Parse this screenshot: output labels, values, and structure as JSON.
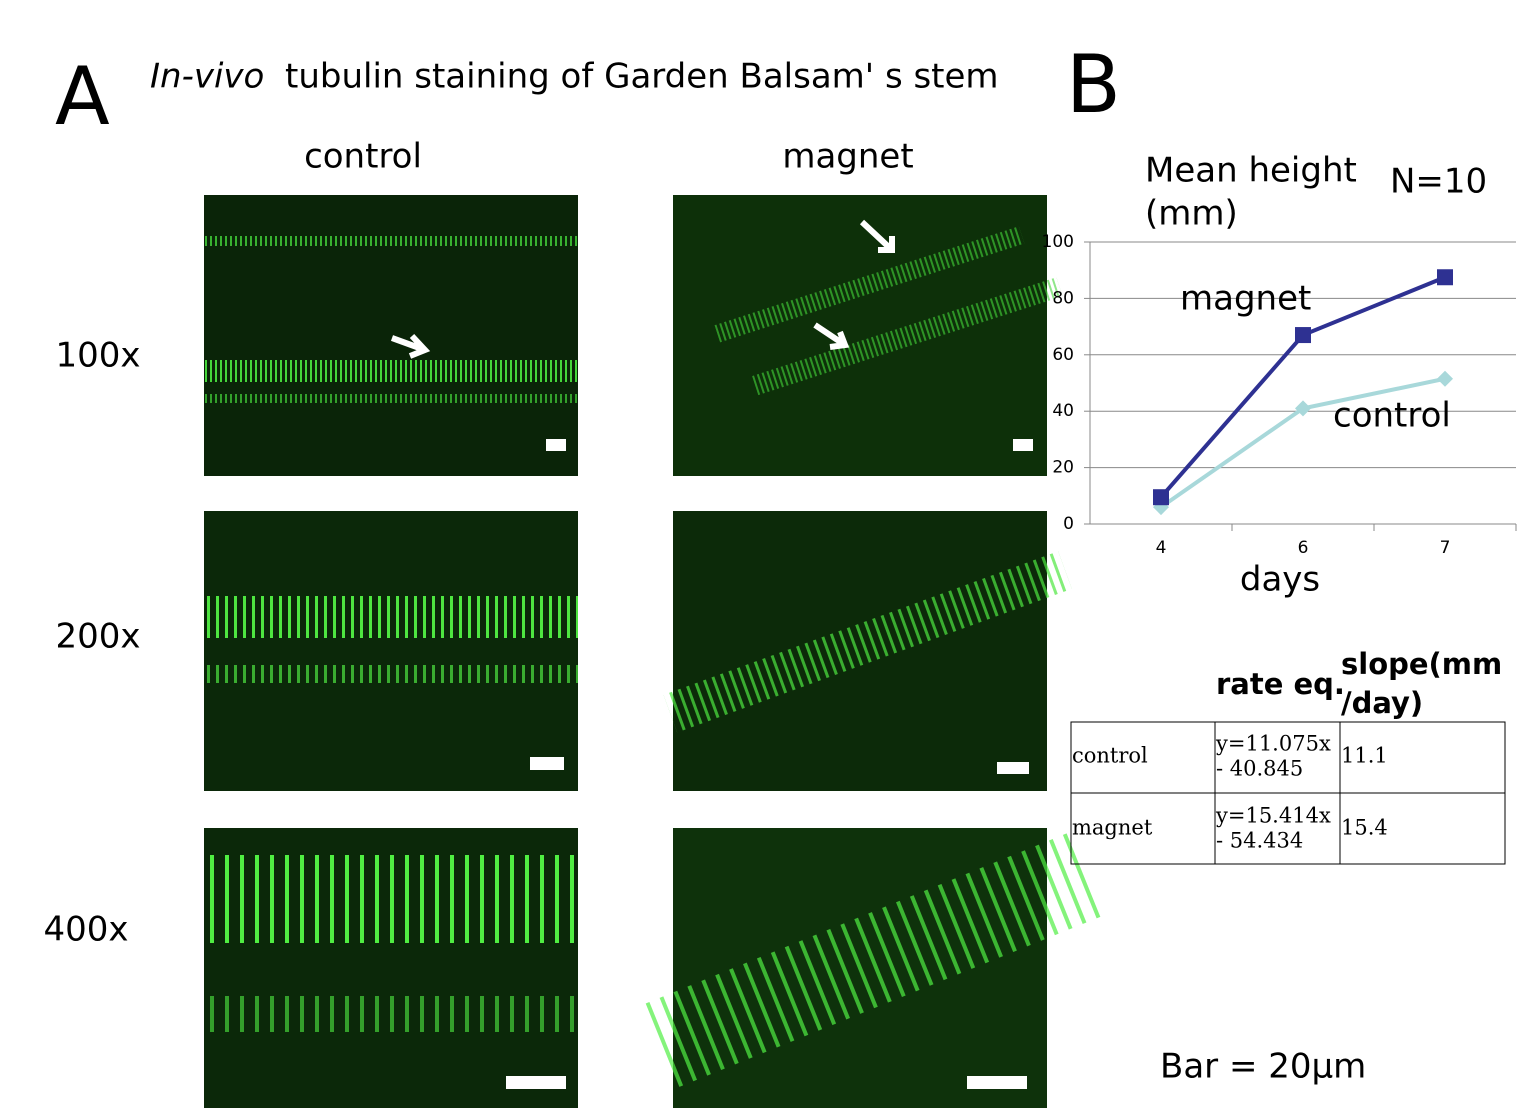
{
  "panel_a": {
    "letter": "A",
    "title_italic": "In-vivo",
    "title_rest": "tubulin staining of Garden Balsam' s stem",
    "columns": [
      "control",
      "magnet"
    ],
    "rows": [
      "100x",
      "200x",
      "400x"
    ]
  },
  "panel_b": {
    "letter": "B",
    "note": "N=10"
  },
  "chart_data": {
    "type": "line",
    "ylabel": [
      "Mean height",
      "(mm)"
    ],
    "xlabel": "days",
    "categories": [
      "4",
      "6",
      "7"
    ],
    "series": [
      {
        "name": "magnet",
        "color": "#2e3192",
        "marker": "square",
        "values": [
          9.5,
          67,
          87.5
        ]
      },
      {
        "name": "control",
        "color": "#a8d8da",
        "marker": "diamond",
        "values": [
          6,
          41,
          51.5
        ]
      }
    ],
    "ylim": [
      0,
      100
    ],
    "yticks": [
      0,
      20,
      40,
      60,
      80,
      100
    ],
    "grid": true
  },
  "table": {
    "columns": [
      "rate eq.",
      [
        "slope(mm",
        "/day)"
      ]
    ],
    "rows": [
      [
        "control",
        [
          "y=11.075x",
          "- 40.845"
        ],
        "11.1"
      ],
      [
        "magnet",
        [
          "y=15.414x",
          "- 54.434"
        ],
        "15.4"
      ]
    ]
  },
  "footer": "Bar = 20μm"
}
